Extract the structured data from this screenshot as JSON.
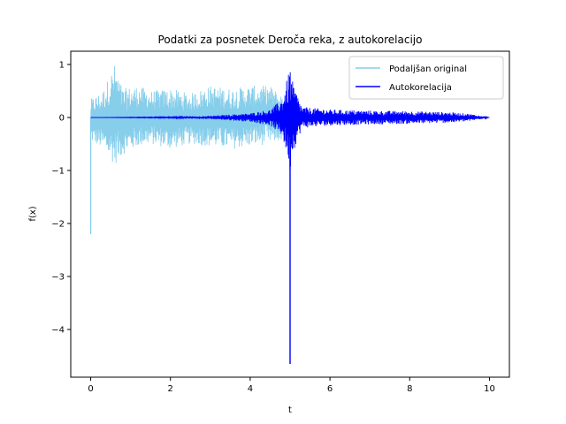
{
  "chart_data": {
    "type": "line",
    "title": "Podatki za posnetek Deroča reka, z autokorelacijo",
    "xlabel": "t",
    "ylabel": "f(x)",
    "xlim": [
      -0.5,
      10.5
    ],
    "ylim": [
      -4.9,
      1.25
    ],
    "x_ticks": [
      0,
      2,
      4,
      6,
      8,
      10
    ],
    "x_tick_labels": [
      "0",
      "2",
      "4",
      "6",
      "8",
      "10"
    ],
    "y_ticks": [
      1,
      0,
      -1,
      -2,
      -3,
      -4
    ],
    "y_tick_labels": [
      "1",
      "0",
      "−1",
      "−2",
      "−3",
      "−4"
    ],
    "grid": false,
    "legend_position": "top-right",
    "series": [
      {
        "name": "Podaljšan original",
        "color": "#87ceeb",
        "description_points": {
          "x_range": [
            0,
            5
          ],
          "envelope_upper": [
            [
              0.0,
              0.35
            ],
            [
              0.3,
              0.5
            ],
            [
              0.6,
              1.0
            ],
            [
              0.8,
              0.55
            ],
            [
              1.2,
              0.6
            ],
            [
              1.5,
              0.5
            ],
            [
              2.0,
              0.55
            ],
            [
              2.5,
              0.45
            ],
            [
              3.0,
              0.6
            ],
            [
              3.5,
              0.55
            ],
            [
              4.0,
              0.6
            ],
            [
              4.5,
              0.6
            ],
            [
              5.0,
              0.3
            ]
          ],
          "envelope_lower": [
            [
              0.0,
              -0.45
            ],
            [
              0.3,
              -0.6
            ],
            [
              0.6,
              -0.9
            ],
            [
              0.8,
              -0.7
            ],
            [
              1.2,
              -0.55
            ],
            [
              1.5,
              -0.5
            ],
            [
              2.0,
              -0.6
            ],
            [
              2.5,
              -0.5
            ],
            [
              3.0,
              -0.55
            ],
            [
              3.5,
              -0.6
            ],
            [
              4.0,
              -0.55
            ],
            [
              4.5,
              -0.5
            ],
            [
              5.0,
              -0.4
            ]
          ],
          "spike_min": [
            0.0,
            -2.2
          ]
        }
      },
      {
        "name": "Autokorelacija",
        "color": "#0000ff",
        "description_points": {
          "x_range": [
            0,
            10
          ],
          "envelope_upper": [
            [
              0.0,
              0.0
            ],
            [
              1.0,
              0.005
            ],
            [
              2.0,
              0.01
            ],
            [
              3.0,
              0.03
            ],
            [
              4.0,
              0.08
            ],
            [
              4.5,
              0.15
            ],
            [
              4.8,
              0.35
            ],
            [
              4.95,
              0.8
            ],
            [
              5.0,
              1.0
            ],
            [
              5.05,
              0.7
            ],
            [
              5.3,
              0.2
            ],
            [
              6.0,
              0.15
            ],
            [
              7.0,
              0.13
            ],
            [
              8.0,
              0.12
            ],
            [
              9.0,
              0.1
            ],
            [
              9.5,
              0.07
            ],
            [
              10.0,
              0.0
            ]
          ],
          "envelope_lower": [
            [
              0.0,
              0.0
            ],
            [
              1.0,
              -0.005
            ],
            [
              2.0,
              -0.01
            ],
            [
              3.0,
              -0.03
            ],
            [
              4.0,
              -0.08
            ],
            [
              4.5,
              -0.15
            ],
            [
              4.8,
              -0.35
            ],
            [
              4.95,
              -0.8
            ],
            [
              5.0,
              -1.05
            ],
            [
              5.05,
              -0.7
            ],
            [
              5.3,
              -0.2
            ],
            [
              6.0,
              -0.15
            ],
            [
              7.0,
              -0.13
            ],
            [
              8.0,
              -0.12
            ],
            [
              9.0,
              -0.1
            ],
            [
              9.5,
              -0.07
            ],
            [
              10.0,
              0.0
            ]
          ],
          "spike_min": [
            5.0,
            -4.65
          ]
        }
      }
    ]
  }
}
